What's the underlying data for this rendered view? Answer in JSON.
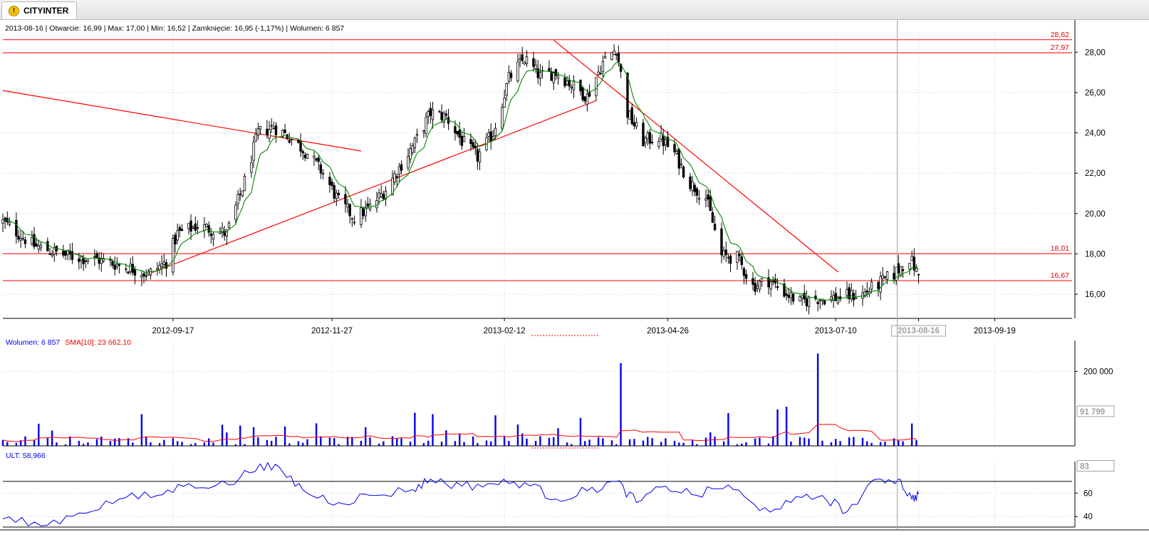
{
  "tab": {
    "label": "CITYINTER",
    "icon": "warning-icon"
  },
  "info_bar": "2013-08-16 | Otwarcie: 16,99 | Max: 17,00 | Min: 16,52 | Zamknięcie: 16,95 (-1,17%) | Wolumen: 6 857",
  "colors": {
    "candle": "#000000",
    "sma_line": "#008800",
    "trend_lines": "#ff0000",
    "volume_bars": "#0000ee",
    "volume_sma": "#ff0000",
    "ult_line": "#0000ee"
  },
  "chart_data": [
    {
      "type": "candlestick",
      "title": "",
      "x_tick_labels": [
        "2012-09-17",
        "2012-11-27",
        "2013-02-12",
        "2013-04-26",
        "2013-07-10",
        "2013-08-16",
        "2013-09-19"
      ],
      "highlighted_x_label": "2013-08-16",
      "ylim": [
        14.8,
        29.0
      ],
      "y_tick_labels": [
        "16,00",
        "18,00",
        "20,00",
        "22,00",
        "24,00",
        "26,00",
        "28,00"
      ],
      "horizontal_levels": [
        {
          "label": "28,62",
          "value": 28.62
        },
        {
          "label": "27,97",
          "value": 27.97
        },
        {
          "label": "18,01",
          "value": 18.01
        },
        {
          "label": "16,67",
          "value": 16.67
        }
      ],
      "trend_lines": [
        {
          "from": [
            "2012-07-03",
            26.1
          ],
          "to": [
            "2012-12-10",
            23.1
          ]
        },
        {
          "from": [
            "2012-09-06",
            17.0
          ],
          "to": [
            "2013-03-25",
            25.6
          ]
        },
        {
          "from": [
            "2013-03-06",
            28.6
          ],
          "to": [
            "2013-07-11",
            17.1
          ]
        }
      ],
      "last_candle": {
        "date": "2013-08-16",
        "open": 16.99,
        "high": 17.0,
        "low": 16.52,
        "close": 16.95
      },
      "close_series": [
        [
          "2012-07-03",
          19.6
        ],
        [
          "2012-07-17",
          18.4
        ],
        [
          "2012-08-01",
          17.9
        ],
        [
          "2012-08-15",
          17.7
        ],
        [
          "2012-08-29",
          17.3
        ],
        [
          "2012-09-06",
          17.0
        ],
        [
          "2012-09-14",
          17.6
        ],
        [
          "2012-09-19",
          19.0
        ],
        [
          "2012-09-28",
          19.4
        ],
        [
          "2012-10-11",
          19.0
        ],
        [
          "2012-10-19",
          21.6
        ],
        [
          "2012-10-25",
          24.0
        ],
        [
          "2012-11-01",
          24.3
        ],
        [
          "2012-11-08",
          23.8
        ],
        [
          "2012-11-16",
          23.0
        ],
        [
          "2012-11-23",
          22.0
        ],
        [
          "2012-11-30",
          20.6
        ],
        [
          "2012-12-07",
          19.8
        ],
        [
          "2012-12-14",
          20.3
        ],
        [
          "2012-12-21",
          21.2
        ],
        [
          "2013-01-03",
          23.5
        ],
        [
          "2013-01-10",
          25.0
        ],
        [
          "2013-01-17",
          24.8
        ],
        [
          "2013-01-24",
          23.6
        ],
        [
          "2013-01-31",
          22.8
        ],
        [
          "2013-02-07",
          24.0
        ],
        [
          "2013-02-14",
          26.7
        ],
        [
          "2013-02-21",
          27.7
        ],
        [
          "2013-02-28",
          26.8
        ],
        [
          "2013-03-07",
          27.0
        ],
        [
          "2013-03-14",
          26.4
        ],
        [
          "2013-03-21",
          25.8
        ],
        [
          "2013-03-28",
          27.5
        ],
        [
          "2013-04-03",
          28.2
        ],
        [
          "2013-04-08",
          25.0
        ],
        [
          "2013-04-15",
          23.6
        ],
        [
          "2013-04-22",
          23.8
        ],
        [
          "2013-04-29",
          23.0
        ],
        [
          "2013-05-06",
          21.5
        ],
        [
          "2013-05-13",
          20.8
        ],
        [
          "2013-05-20",
          17.9
        ],
        [
          "2013-05-27",
          17.8
        ],
        [
          "2013-06-03",
          16.4
        ],
        [
          "2013-06-10",
          16.7
        ],
        [
          "2013-06-17",
          16.1
        ],
        [
          "2013-06-24",
          15.6
        ],
        [
          "2013-07-01",
          15.8
        ],
        [
          "2013-07-08",
          15.8
        ],
        [
          "2013-07-15",
          15.9
        ],
        [
          "2013-07-22",
          16.0
        ],
        [
          "2013-07-29",
          16.5
        ],
        [
          "2013-08-05",
          17.0
        ],
        [
          "2013-08-12",
          17.8
        ],
        [
          "2013-08-16",
          16.95
        ]
      ]
    },
    {
      "type": "bar",
      "title": "",
      "legend": {
        "volume_label": "Wolumen: 6 857",
        "sma_label": "SMA[10]: 23 662,10"
      },
      "ylim": [
        0,
        260000
      ],
      "y_tick_labels": [
        "200 000"
      ],
      "y_tick_values": [
        200000
      ],
      "marker_label": "91 799",
      "marker_value": 91799,
      "volume_spikes": [
        [
          "2012-09-03",
          85000
        ],
        [
          "2012-11-05",
          52000
        ],
        [
          "2012-12-12",
          50000
        ],
        [
          "2013-01-03",
          89000
        ],
        [
          "2013-01-11",
          85000
        ],
        [
          "2013-02-08",
          82000
        ],
        [
          "2013-03-18",
          75000
        ],
        [
          "2013-04-05",
          222000
        ],
        [
          "2013-05-23",
          88000
        ],
        [
          "2013-06-14",
          98000
        ],
        [
          "2013-06-18",
          105000
        ],
        [
          "2013-07-02",
          248000
        ],
        [
          "2013-08-12",
          60000
        ]
      ]
    },
    {
      "type": "line",
      "title": "",
      "legend": "ULT: 58,966",
      "ylim": [
        31,
        87
      ],
      "y_tick_labels": [
        "40",
        "60"
      ],
      "y_tick_values": [
        40,
        60
      ],
      "reference_level": 70,
      "marker_label": "83",
      "marker_value": 83,
      "series": [
        [
          "2012-07-03",
          38
        ],
        [
          "2012-07-20",
          32
        ],
        [
          "2012-08-06",
          43
        ],
        [
          "2012-08-24",
          55
        ],
        [
          "2012-09-10",
          58
        ],
        [
          "2012-09-24",
          68
        ],
        [
          "2012-10-12",
          67
        ],
        [
          "2012-10-26",
          85
        ],
        [
          "2012-11-05",
          78
        ],
        [
          "2012-11-16",
          60
        ],
        [
          "2012-11-30",
          52
        ],
        [
          "2012-12-14",
          58
        ],
        [
          "2013-01-02",
          63
        ],
        [
          "2013-01-10",
          72
        ],
        [
          "2013-01-24",
          66
        ],
        [
          "2013-02-07",
          68
        ],
        [
          "2013-02-21",
          69
        ],
        [
          "2013-03-07",
          55
        ],
        [
          "2013-03-21",
          62
        ],
        [
          "2013-04-03",
          70
        ],
        [
          "2013-04-12",
          52
        ],
        [
          "2013-04-25",
          66
        ],
        [
          "2013-05-09",
          58
        ],
        [
          "2013-05-23",
          67
        ],
        [
          "2013-06-06",
          45
        ],
        [
          "2013-06-20",
          52
        ],
        [
          "2013-07-04",
          58
        ],
        [
          "2013-07-15",
          44
        ],
        [
          "2013-07-29",
          72
        ],
        [
          "2013-08-07",
          72
        ],
        [
          "2013-08-13",
          55
        ],
        [
          "2013-08-16",
          59
        ]
      ]
    }
  ]
}
